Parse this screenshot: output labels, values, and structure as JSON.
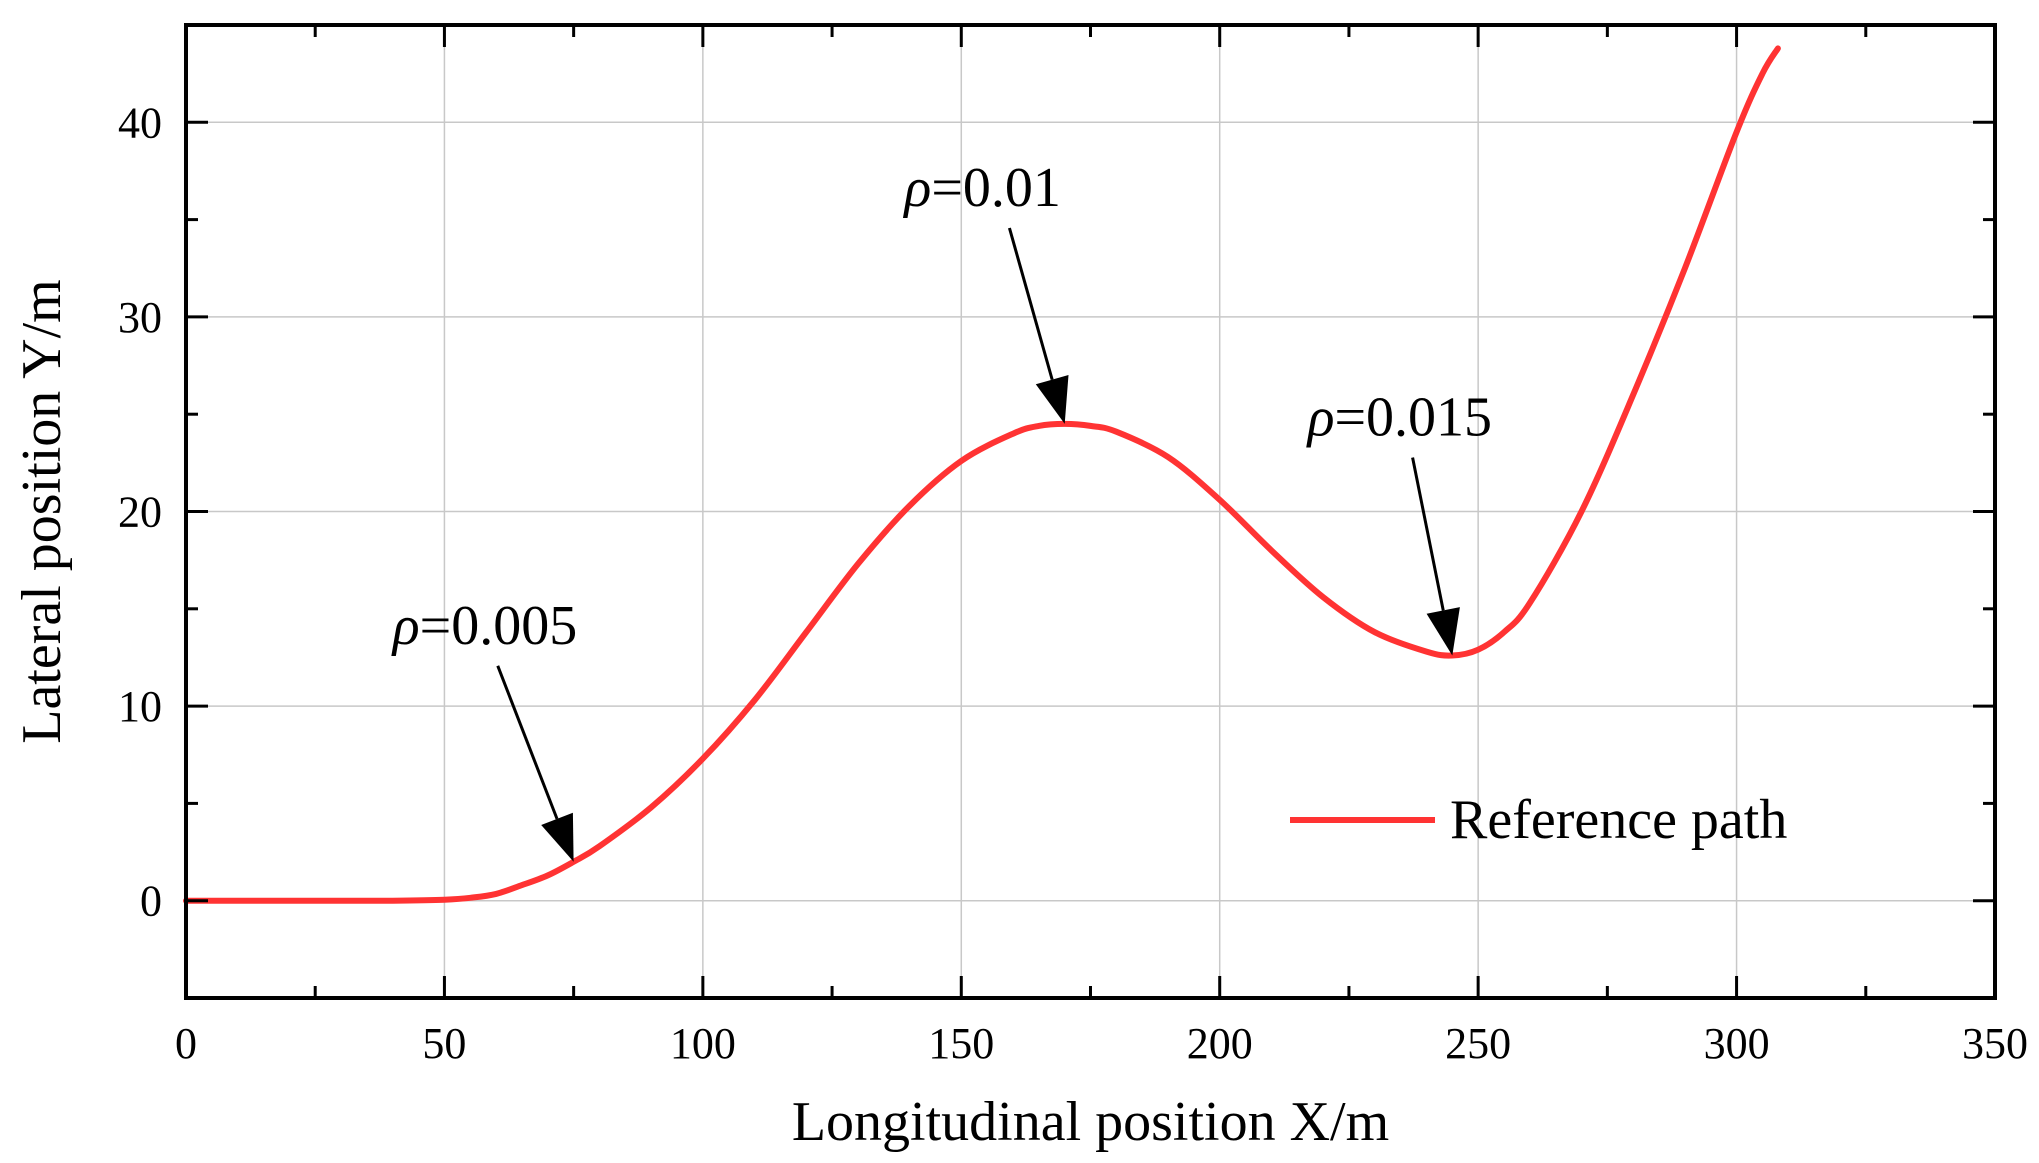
{
  "chart_data": {
    "type": "line",
    "title": "",
    "xlabel": "Longitudinal position X/m",
    "ylabel": "Lateral position Y/m",
    "xlim": [
      0,
      350
    ],
    "ylim": [
      -5,
      45
    ],
    "xticks": [
      0,
      50,
      100,
      150,
      200,
      250,
      300,
      350
    ],
    "yticks": [
      0,
      10,
      20,
      30,
      40
    ],
    "x_minor_step": 25,
    "y_minor_step": 5,
    "grid": true,
    "legend": {
      "position": "lower-right",
      "entries": [
        "Reference path"
      ]
    },
    "series": [
      {
        "name": "Reference path",
        "color": "#ff3333",
        "x": [
          0,
          10,
          20,
          30,
          40,
          50,
          55,
          60,
          65,
          70,
          75,
          80,
          90,
          100,
          110,
          120,
          130,
          140,
          150,
          160,
          165,
          170,
          175,
          180,
          190,
          200,
          210,
          220,
          230,
          240,
          245,
          250,
          255,
          260,
          270,
          280,
          290,
          300,
          305,
          308
        ],
        "y": [
          0,
          0,
          0,
          0,
          0,
          0.05,
          0.15,
          0.35,
          0.8,
          1.3,
          2.0,
          2.8,
          4.8,
          7.3,
          10.3,
          13.8,
          17.3,
          20.3,
          22.6,
          24.0,
          24.4,
          24.5,
          24.4,
          24.1,
          22.8,
          20.6,
          18.0,
          15.6,
          13.8,
          12.8,
          12.6,
          12.9,
          13.8,
          15.3,
          20.0,
          26.0,
          32.5,
          39.5,
          42.5,
          43.8
        ]
      }
    ],
    "annotations": [
      {
        "symbol": "ρ",
        "text": "=0.005",
        "label_x": 40,
        "label_y": 13.2,
        "point_x": 75,
        "point_y": 2.0
      },
      {
        "symbol": "ρ",
        "text": "=0.01",
        "label_x": 139,
        "label_y": 35.7,
        "point_x": 170,
        "point_y": 24.5
      },
      {
        "symbol": "ρ",
        "text": "=0.015",
        "label_x": 217,
        "label_y": 23.9,
        "point_x": 245,
        "point_y": 12.6
      }
    ]
  }
}
